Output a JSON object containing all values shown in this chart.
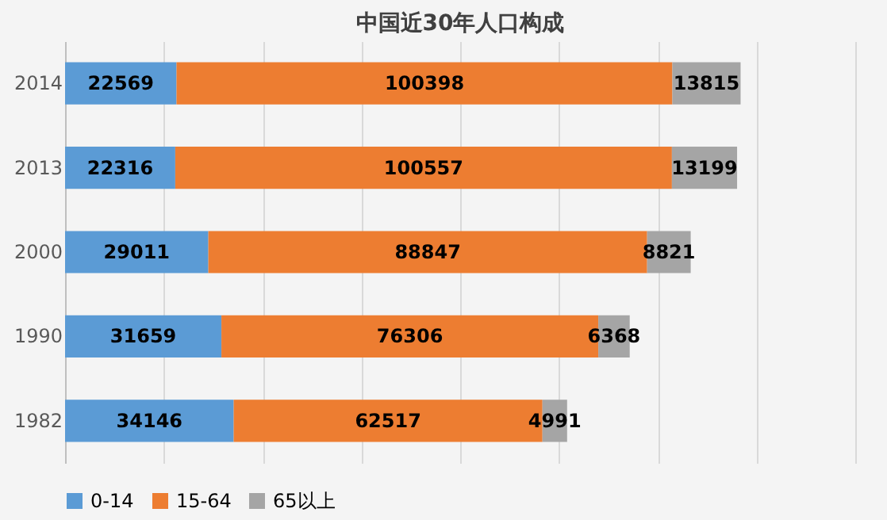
{
  "chart_data": {
    "type": "bar",
    "orientation": "horizontal",
    "stacked": true,
    "title": "中国近30年人口构成",
    "categories": [
      "2014",
      "2013",
      "2000",
      "1990",
      "1982"
    ],
    "series": [
      {
        "name": "0-14",
        "color": "#5b9bd5",
        "values": [
          22569,
          22316,
          29011,
          31659,
          34146
        ]
      },
      {
        "name": "15-64",
        "color": "#ed7d31",
        "values": [
          100398,
          100557,
          88847,
          76306,
          62517
        ]
      },
      {
        "name": "65以上",
        "color": "#a5a5a5",
        "values": [
          13815,
          13199,
          8821,
          6368,
          4991
        ]
      }
    ],
    "xlim": [
      0,
      160000
    ],
    "xticks": [
      {
        "value": 0,
        "label": null
      },
      {
        "value": 20000,
        "label": null
      },
      {
        "value": 40000,
        "label": null
      },
      {
        "value": 60000,
        "label": null
      },
      {
        "value": 80000,
        "label": null
      },
      {
        "value": 100000,
        "label": null
      },
      {
        "value": 120000,
        "label": null
      },
      {
        "value": 140000,
        "label": null
      },
      {
        "value": 160000,
        "label": null
      }
    ],
    "tick_labels": "y",
    "grid": "x",
    "legend": "bottom",
    "data_labels": true
  }
}
